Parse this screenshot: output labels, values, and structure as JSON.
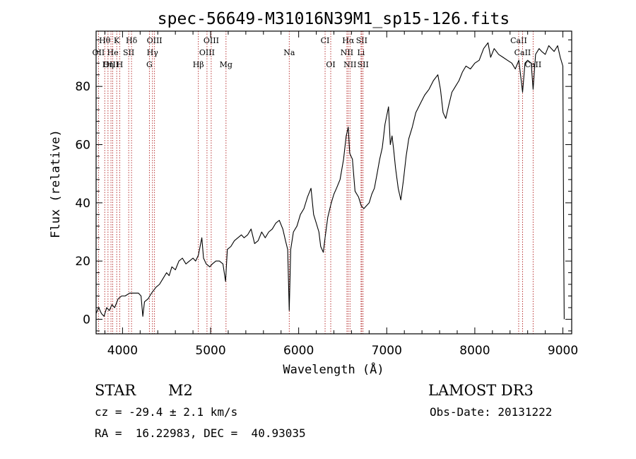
{
  "chart_data": {
    "type": "line",
    "title": "spec-56649-M31016N39M1_sp15-126.fits",
    "xlabel": "Wavelength (Å)",
    "ylabel": "Flux (relative)",
    "xlim": [
      3700,
      9100
    ],
    "ylim": [
      -5,
      99
    ],
    "x_ticks": [
      4000,
      5000,
      6000,
      7000,
      8000,
      9000
    ],
    "y_ticks": [
      0,
      20,
      40,
      60,
      80
    ],
    "series": [
      {
        "name": "spectrum",
        "points": [
          [
            3700,
            2
          ],
          [
            3730,
            4
          ],
          [
            3760,
            2
          ],
          [
            3790,
            1
          ],
          [
            3820,
            4
          ],
          [
            3850,
            3
          ],
          [
            3880,
            5
          ],
          [
            3910,
            4
          ],
          [
            3950,
            7
          ],
          [
            3990,
            8
          ],
          [
            4030,
            8
          ],
          [
            4080,
            9
          ],
          [
            4130,
            9
          ],
          [
            4180,
            9
          ],
          [
            4210,
            8
          ],
          [
            4230,
            1
          ],
          [
            4250,
            6
          ],
          [
            4290,
            7
          ],
          [
            4330,
            9
          ],
          [
            4380,
            11
          ],
          [
            4420,
            12
          ],
          [
            4460,
            14
          ],
          [
            4500,
            16
          ],
          [
            4530,
            15
          ],
          [
            4560,
            18
          ],
          [
            4600,
            17
          ],
          [
            4640,
            20
          ],
          [
            4680,
            21
          ],
          [
            4720,
            19
          ],
          [
            4760,
            20
          ],
          [
            4800,
            21
          ],
          [
            4830,
            20
          ],
          [
            4861,
            22
          ],
          [
            4900,
            28
          ],
          [
            4920,
            21
          ],
          [
            4950,
            19
          ],
          [
            4990,
            18
          ],
          [
            5020,
            19
          ],
          [
            5060,
            20
          ],
          [
            5100,
            20
          ],
          [
            5140,
            19
          ],
          [
            5170,
            13
          ],
          [
            5190,
            24
          ],
          [
            5230,
            25
          ],
          [
            5270,
            27
          ],
          [
            5310,
            28
          ],
          [
            5350,
            29
          ],
          [
            5380,
            28
          ],
          [
            5420,
            29
          ],
          [
            5460,
            31
          ],
          [
            5500,
            26
          ],
          [
            5540,
            27
          ],
          [
            5580,
            30
          ],
          [
            5620,
            28
          ],
          [
            5660,
            30
          ],
          [
            5700,
            31
          ],
          [
            5740,
            33
          ],
          [
            5780,
            34
          ],
          [
            5820,
            31
          ],
          [
            5850,
            27
          ],
          [
            5875,
            24
          ],
          [
            5893,
            3
          ],
          [
            5910,
            24
          ],
          [
            5940,
            30
          ],
          [
            5980,
            32
          ],
          [
            6020,
            36
          ],
          [
            6060,
            38
          ],
          [
            6100,
            42
          ],
          [
            6140,
            45
          ],
          [
            6170,
            36
          ],
          [
            6200,
            33
          ],
          [
            6230,
            30
          ],
          [
            6250,
            25
          ],
          [
            6280,
            23
          ],
          [
            6300,
            28
          ],
          [
            6330,
            35
          ],
          [
            6370,
            40
          ],
          [
            6400,
            43
          ],
          [
            6430,
            45
          ],
          [
            6470,
            48
          ],
          [
            6510,
            55
          ],
          [
            6540,
            63
          ],
          [
            6563,
            66
          ],
          [
            6580,
            57
          ],
          [
            6610,
            55
          ],
          [
            6640,
            44
          ],
          [
            6680,
            42
          ],
          [
            6710,
            39
          ],
          [
            6740,
            38
          ],
          [
            6770,
            39
          ],
          [
            6800,
            40
          ],
          [
            6830,
            43
          ],
          [
            6860,
            45
          ],
          [
            6890,
            50
          ],
          [
            6920,
            55
          ],
          [
            6950,
            59
          ],
          [
            6980,
            67
          ],
          [
            7020,
            73
          ],
          [
            7040,
            60
          ],
          [
            7060,
            63
          ],
          [
            7080,
            58
          ],
          [
            7100,
            52
          ],
          [
            7130,
            45
          ],
          [
            7160,
            41
          ],
          [
            7190,
            48
          ],
          [
            7220,
            56
          ],
          [
            7250,
            62
          ],
          [
            7290,
            66
          ],
          [
            7330,
            71
          ],
          [
            7380,
            74
          ],
          [
            7430,
            77
          ],
          [
            7480,
            79
          ],
          [
            7530,
            82
          ],
          [
            7580,
            84
          ],
          [
            7610,
            79
          ],
          [
            7640,
            71
          ],
          [
            7670,
            69
          ],
          [
            7700,
            73
          ],
          [
            7740,
            78
          ],
          [
            7780,
            80
          ],
          [
            7820,
            82
          ],
          [
            7860,
            85
          ],
          [
            7900,
            87
          ],
          [
            7950,
            86
          ],
          [
            8000,
            88
          ],
          [
            8050,
            89
          ],
          [
            8100,
            93
          ],
          [
            8150,
            95
          ],
          [
            8180,
            90
          ],
          [
            8220,
            93
          ],
          [
            8270,
            91
          ],
          [
            8320,
            90
          ],
          [
            8370,
            89
          ],
          [
            8420,
            88
          ],
          [
            8460,
            86
          ],
          [
            8500,
            89
          ],
          [
            8542,
            78
          ],
          [
            8570,
            88
          ],
          [
            8600,
            89
          ],
          [
            8640,
            88
          ],
          [
            8662,
            79
          ],
          [
            8690,
            91
          ],
          [
            8730,
            93
          ],
          [
            8760,
            92
          ],
          [
            8800,
            91
          ],
          [
            8840,
            94
          ],
          [
            8870,
            93
          ],
          [
            8900,
            92
          ],
          [
            8940,
            94
          ],
          [
            8970,
            90
          ],
          [
            9000,
            87
          ],
          [
            9010,
            20
          ],
          [
            9015,
            0
          ]
        ]
      }
    ],
    "line_markers": [
      {
        "label": "Hθ",
        "x": 3798,
        "row": 1
      },
      {
        "label": "K",
        "x": 3934,
        "row": 1
      },
      {
        "label": "Hδ",
        "x": 4102,
        "row": 1
      },
      {
        "label": "OIII",
        "x": 4363,
        "row": 1
      },
      {
        "label": "OIII",
        "x": 5007,
        "row": 1
      },
      {
        "label": "CI",
        "x": 6300,
        "row": 1
      },
      {
        "label": "Hα",
        "x": 6563,
        "row": 1
      },
      {
        "label": "SII",
        "x": 6716,
        "row": 1
      },
      {
        "label": "CaII",
        "x": 8498,
        "row": 1
      },
      {
        "label": "OII",
        "x": 3727,
        "row": 2
      },
      {
        "label": "He",
        "x": 3889,
        "row": 2
      },
      {
        "label": "SII",
        "x": 4070,
        "row": 2
      },
      {
        "label": "Hγ",
        "x": 4340,
        "row": 2
      },
      {
        "label": "OIII",
        "x": 4959,
        "row": 2
      },
      {
        "label": "Na",
        "x": 5893,
        "row": 2
      },
      {
        "label": "NII",
        "x": 6548,
        "row": 2
      },
      {
        "label": "Li",
        "x": 6708,
        "row": 2
      },
      {
        "label": "CaII",
        "x": 8542,
        "row": 2
      },
      {
        "label": "OIII",
        "x": 3869,
        "row": 3
      },
      {
        "label": "Hη",
        "x": 3835,
        "row": 3
      },
      {
        "label": "H",
        "x": 3968,
        "row": 3
      },
      {
        "label": "G",
        "x": 4305,
        "row": 3
      },
      {
        "label": "Hβ",
        "x": 4861,
        "row": 3
      },
      {
        "label": "Mg",
        "x": 5175,
        "row": 3
      },
      {
        "label": "OI",
        "x": 6364,
        "row": 3
      },
      {
        "label": "NII",
        "x": 6583,
        "row": 3
      },
      {
        "label": "SII",
        "x": 6731,
        "row": 3
      },
      {
        "label": "CaII",
        "x": 8662,
        "row": 3
      }
    ]
  },
  "info": {
    "object_class": "STAR",
    "subclass": "M2",
    "survey": "LAMOST DR3",
    "redshift": "cz = -29.4 ± 2.1 km/s",
    "obs_date": "Obs-Date: 20131222",
    "coords": "RA =  16.22983, DEC =  40.93035"
  }
}
